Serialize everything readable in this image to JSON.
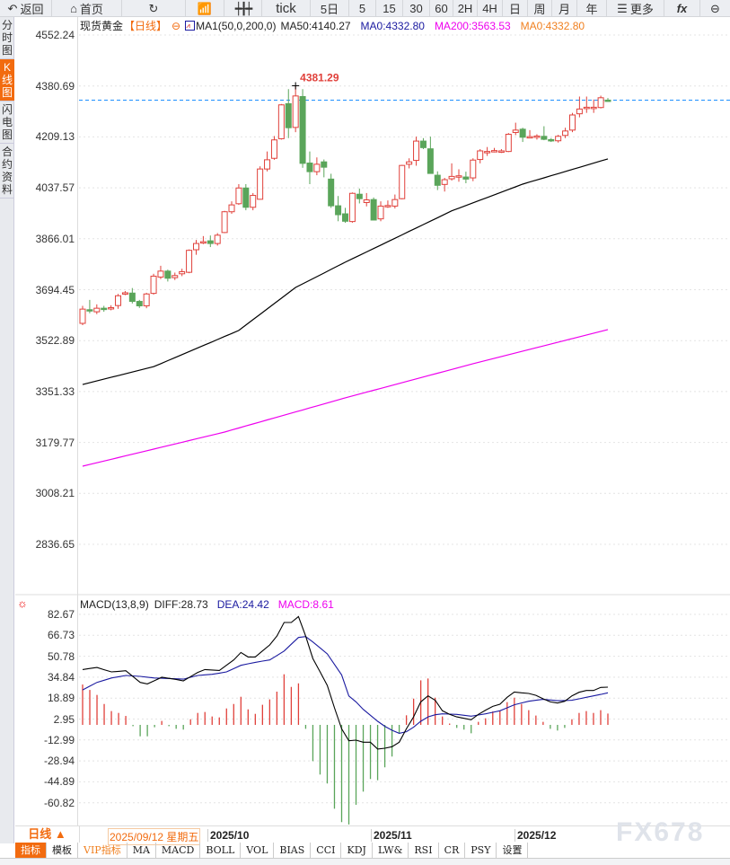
{
  "toolbar": {
    "back": "返回",
    "home": "首页",
    "tick": "tick",
    "p5d": "5日",
    "p5": "5",
    "p15": "15",
    "p30": "30",
    "p60": "60",
    "p2h": "2H",
    "p4h": "4H",
    "day": "日",
    "week": "周",
    "month": "月",
    "year": "年",
    "more": "更多",
    "fx": "fx"
  },
  "sidebar": {
    "items": [
      "分时图",
      "K线图",
      "闪电图",
      "合约资料"
    ],
    "active": 1
  },
  "legend": {
    "symbol": "现货黄金",
    "period": "【日线】",
    "ma_name": "MA1(50,0,200,0)",
    "ma50": "MA50:4140.27",
    "ma0a": "MA0:4332.80",
    "ma200": "MA200:3563.53",
    "ma0b": "MA0:4332.80"
  },
  "macd_legend": {
    "name": "MACD(13,8,9)",
    "diff": "DIFF:28.73",
    "dea": "DEA:24.42",
    "macd": "MACD:8.61"
  },
  "high_label": "4381.29",
  "datebar": {
    "period": "日线 ▲",
    "cursor_date": "2025/09/12 星期五",
    "months": [
      "2025/10",
      "2025/11",
      "2025/12"
    ]
  },
  "bottom_tabs": [
    "指标",
    "模板",
    "VIP指标",
    "MA",
    "MACD",
    "BOLL",
    "VOL",
    "BIAS",
    "CCI",
    "KDJ",
    "LW&",
    "RSI",
    "CR",
    "PSY",
    "设置"
  ],
  "watermark": "FX678",
  "colors": {
    "up": "#e0403a",
    "down": "#5aa55a",
    "ma50": "#000000",
    "ma200": "#ee00ee",
    "dea": "#1a1aa0",
    "accent": "#f26b0f",
    "last_price_line": "#1e90ff"
  },
  "chart_data": [
    {
      "type": "candlestick",
      "title": "现货黄金",
      "last_price": 4332.8,
      "y_ticks": [
        "4552.24",
        "4380.69",
        "4209.13",
        "4037.57",
        "3866.01",
        "3694.45",
        "3522.89",
        "3351.33",
        "3179.77",
        "3008.21",
        "2836.65"
      ],
      "ylim": [
        2836.65,
        4552.24
      ],
      "ohlc": [
        [
          3581,
          3629,
          3640,
          3575
        ],
        [
          3627,
          3625,
          3660,
          3615
        ],
        [
          3620,
          3632,
          3645,
          3612
        ],
        [
          3632,
          3630,
          3640,
          3620
        ],
        [
          3630,
          3634,
          3642,
          3625
        ],
        [
          3641,
          3674,
          3680,
          3630
        ],
        [
          3680,
          3684,
          3690,
          3676
        ],
        [
          3683,
          3655,
          3700,
          3648
        ],
        [
          3655,
          3640,
          3660,
          3633
        ],
        [
          3640,
          3680,
          3684,
          3632
        ],
        [
          3682,
          3740,
          3748,
          3678
        ],
        [
          3737,
          3757,
          3775,
          3730
        ],
        [
          3757,
          3733,
          3762,
          3722
        ],
        [
          3735,
          3742,
          3752,
          3727
        ],
        [
          3748,
          3755,
          3765,
          3740
        ],
        [
          3753,
          3827,
          3830,
          3750
        ],
        [
          3829,
          3850,
          3862,
          3812
        ],
        [
          3852,
          3856,
          3875,
          3848
        ],
        [
          3859,
          3850,
          3877,
          3838
        ],
        [
          3850,
          3878,
          3885,
          3843
        ],
        [
          3887,
          3957,
          3960,
          3885
        ],
        [
          3957,
          3980,
          3992,
          3950
        ],
        [
          3984,
          4037,
          4050,
          3980
        ],
        [
          4037,
          3972,
          4050,
          3962
        ],
        [
          3972,
          4012,
          4020,
          3962
        ],
        [
          3999,
          4101,
          4110,
          3998
        ],
        [
          4101,
          4132,
          4160,
          4093
        ],
        [
          4137,
          4199,
          4212,
          4132
        ],
        [
          4203,
          4317,
          4320,
          4200
        ],
        [
          4321,
          4240,
          4370,
          4205
        ],
        [
          4241,
          4347,
          4381.29,
          4225
        ],
        [
          4345,
          4120,
          4370,
          4105
        ],
        [
          4121,
          4092,
          4160,
          4050
        ],
        [
          4092,
          4117,
          4140,
          4080
        ],
        [
          4125,
          4107,
          4133,
          4073
        ],
        [
          4067,
          3977,
          4085,
          3970
        ],
        [
          3977,
          3947,
          4010,
          3925
        ],
        [
          3950,
          3925,
          3970,
          3920
        ],
        [
          3924,
          4019,
          4022,
          3920
        ],
        [
          4016,
          4001,
          4035,
          3985
        ],
        [
          3988,
          3997,
          4020,
          3975
        ],
        [
          3998,
          3929,
          4005,
          3929
        ],
        [
          3933,
          3976,
          3992,
          3925
        ],
        [
          3978,
          3978,
          3995,
          3970
        ],
        [
          3976,
          3998,
          4015,
          3968
        ],
        [
          4001,
          4113,
          4115,
          3999
        ],
        [
          4117,
          4125,
          4137,
          4103
        ],
        [
          4130,
          4195,
          4210,
          4112
        ],
        [
          4195,
          4173,
          4205,
          4168
        ],
        [
          4169,
          4086,
          4210,
          4086
        ],
        [
          4080,
          4046,
          4093,
          4030
        ],
        [
          4049,
          4065,
          4071,
          4025
        ],
        [
          4068,
          4076,
          4120,
          4062
        ],
        [
          4078,
          4078,
          4100,
          4058
        ],
        [
          4074,
          4067,
          4092,
          4053
        ],
        [
          4071,
          4131,
          4137,
          4060
        ],
        [
          4133,
          4162,
          4168,
          4120
        ],
        [
          4160,
          4160,
          4175,
          4145
        ],
        [
          4160,
          4163,
          4172,
          4157
        ],
        [
          4162,
          4162,
          4168,
          4155
        ],
        [
          4160,
          4218,
          4222,
          4158
        ],
        [
          4224,
          4232,
          4257,
          4215
        ],
        [
          4235,
          4208,
          4240,
          4192
        ],
        [
          4210,
          4210,
          4232,
          4205
        ],
        [
          4212,
          4212,
          4218,
          4200
        ],
        [
          4211,
          4201,
          4245,
          4198
        ],
        [
          4200,
          4196,
          4205,
          4192
        ],
        [
          4196,
          4211,
          4216,
          4190
        ],
        [
          4214,
          4229,
          4240,
          4205
        ],
        [
          4232,
          4283,
          4290,
          4225
        ],
        [
          4287,
          4303,
          4345,
          4275
        ],
        [
          4305,
          4309,
          4345,
          4290
        ],
        [
          4309,
          4309,
          4335,
          4290
        ],
        [
          4308,
          4341,
          4348,
          4305
        ],
        [
          4333,
          4332.8,
          4340,
          4328
        ]
      ],
      "ma50": [
        [
          0,
          3375
        ],
        [
          10,
          3435
        ],
        [
          22,
          3557
        ],
        [
          30,
          3702
        ],
        [
          37,
          3787
        ],
        [
          43,
          3856
        ],
        [
          52,
          3960
        ],
        [
          62,
          4050
        ],
        [
          74,
          4135
        ]
      ],
      "ma200": [
        [
          0,
          3100
        ],
        [
          20,
          3215
        ],
        [
          37,
          3330
        ],
        [
          55,
          3445
        ],
        [
          74,
          3560
        ]
      ]
    },
    {
      "type": "macd",
      "y_ticks": [
        "82.67",
        "66.73",
        "50.78",
        "34.84",
        "18.89",
        "2.95",
        "-12.99",
        "-28.94",
        "-44.89",
        "-60.82"
      ],
      "histogram": [
        30.7,
        26.6,
        22.8,
        15.9,
        10.5,
        9.1,
        6.8,
        -1,
        -8.7,
        -8.7,
        -1.8,
        3.0,
        -1,
        -3,
        -3.6,
        4.3,
        9.1,
        9.8,
        6.4,
        5.7,
        12.5,
        15.9,
        21.4,
        11.8,
        8.4,
        15.3,
        19.4,
        25.3,
        38.5,
        28.9,
        31.6,
        -3,
        -27.6,
        -37.8,
        -44.6,
        -63.8,
        -74,
        -75.8,
        -60.8,
        -50.8,
        -41.2,
        -42.1,
        -32.3,
        -24.1,
        -6.4,
        7.3,
        20,
        33.9,
        35.3,
        20.7,
        6.4,
        1,
        -2.3,
        -3.6,
        -6.4,
        2.3,
        5,
        10.2,
        10.5,
        17.3,
        20.7,
        15.9,
        11.2,
        7.1,
        2.3,
        -3,
        -4.3,
        -2.3,
        4.3,
        9.1,
        10.5,
        9.1,
        11.2,
        8.61
      ],
      "diff": [
        [
          0,
          42.1
        ],
        [
          2,
          43.7
        ],
        [
          4,
          40.3
        ],
        [
          6,
          41.2
        ],
        [
          8,
          32.3
        ],
        [
          9,
          31.2
        ],
        [
          11,
          36.2
        ],
        [
          13,
          34.6
        ],
        [
          14,
          33.5
        ],
        [
          16,
          39.9
        ],
        [
          17,
          42.1
        ],
        [
          19,
          41.4
        ],
        [
          21,
          49.4
        ],
        [
          22,
          55.1
        ],
        [
          23,
          51.7
        ],
        [
          24,
          51.7
        ],
        [
          26,
          60.8
        ],
        [
          27,
          67.6
        ],
        [
          28,
          77.9
        ],
        [
          29,
          77.9
        ],
        [
          30,
          82.4
        ],
        [
          31,
          67.6
        ],
        [
          32,
          50.5
        ],
        [
          33,
          40.3
        ],
        [
          34,
          30
        ],
        [
          35,
          13
        ],
        [
          36,
          -3
        ],
        [
          37,
          -12.1
        ],
        [
          38,
          -11.6
        ],
        [
          39,
          -13.2
        ],
        [
          40,
          -13.2
        ],
        [
          41,
          -18.4
        ],
        [
          42,
          -17.8
        ],
        [
          43,
          -16.6
        ],
        [
          44,
          -13.2
        ],
        [
          45,
          -3
        ],
        [
          46,
          6.1
        ],
        [
          47,
          17.5
        ],
        [
          48,
          22.1
        ],
        [
          49,
          18.7
        ],
        [
          50,
          10.7
        ],
        [
          51,
          8
        ],
        [
          52,
          6.1
        ],
        [
          53,
          5
        ],
        [
          54,
          3.9
        ],
        [
          55,
          8
        ],
        [
          56,
          11.2
        ],
        [
          57,
          14.1
        ],
        [
          58,
          15.7
        ],
        [
          59,
          21
        ],
        [
          60,
          25
        ],
        [
          61,
          24.4
        ],
        [
          62,
          23.9
        ],
        [
          63,
          22.5
        ],
        [
          64,
          19.8
        ],
        [
          65,
          17.5
        ],
        [
          66,
          16.6
        ],
        [
          67,
          18
        ],
        [
          68,
          22.1
        ],
        [
          69,
          24.8
        ],
        [
          70,
          26.2
        ],
        [
          71,
          26.2
        ],
        [
          72,
          28.5
        ],
        [
          73,
          28.73
        ]
      ],
      "dea": [
        [
          0,
          26.6
        ],
        [
          2,
          32.3
        ],
        [
          4,
          35.7
        ],
        [
          6,
          37.6
        ],
        [
          8,
          36.9
        ],
        [
          10,
          35.7
        ],
        [
          12,
          35.3
        ],
        [
          14,
          34.8
        ],
        [
          16,
          37.6
        ],
        [
          18,
          38.5
        ],
        [
          20,
          40.3
        ],
        [
          22,
          45.3
        ],
        [
          24,
          47.6
        ],
        [
          26,
          49.4
        ],
        [
          28,
          56.2
        ],
        [
          30,
          66.5
        ],
        [
          31,
          67.2
        ],
        [
          32,
          63.1
        ],
        [
          34,
          54
        ],
        [
          36,
          38
        ],
        [
          37,
          22
        ],
        [
          38,
          17.5
        ],
        [
          39,
          11.8
        ],
        [
          40,
          7.3
        ],
        [
          41,
          2.7
        ],
        [
          42,
          -1.1
        ],
        [
          43,
          -4.1
        ],
        [
          44,
          -6.4
        ],
        [
          45,
          -5.2
        ],
        [
          46,
          -1.8
        ],
        [
          47,
          2.7
        ],
        [
          48,
          6.1
        ],
        [
          49,
          7.7
        ],
        [
          50,
          8.4
        ],
        [
          52,
          8
        ],
        [
          54,
          6.6
        ],
        [
          56,
          8.4
        ],
        [
          58,
          10.7
        ],
        [
          60,
          15.3
        ],
        [
          62,
          18
        ],
        [
          64,
          19.4
        ],
        [
          66,
          18.4
        ],
        [
          68,
          18.7
        ],
        [
          70,
          21
        ],
        [
          72,
          23.2
        ],
        [
          73,
          24.42
        ]
      ]
    }
  ]
}
